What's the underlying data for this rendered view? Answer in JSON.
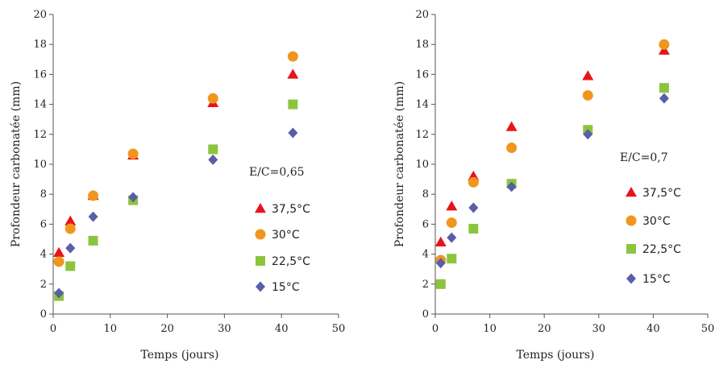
{
  "chart_data": [
    {
      "type": "scatter",
      "title": "",
      "annotation": "E/C=0,65",
      "xlabel": "Temps (jours)",
      "ylabel": "Profondeur carbonatée (mm)",
      "xlim": [
        0,
        50
      ],
      "ylim": [
        0,
        20
      ],
      "xticks": [
        "0",
        "10",
        "20",
        "30",
        "40",
        "50"
      ],
      "yticks": [
        "0",
        "2",
        "4",
        "6",
        "8",
        "10",
        "12",
        "14",
        "16",
        "18",
        "20"
      ],
      "grid": false,
      "legend_position": "right",
      "series": [
        {
          "name": "37,5°C",
          "marker": "triangle",
          "color": "#e8141b",
          "x": [
            1,
            3,
            7,
            14,
            28,
            42
          ],
          "y": [
            4.1,
            6.2,
            7.9,
            10.6,
            14.1,
            16.0
          ]
        },
        {
          "name": "30°C",
          "marker": "circle",
          "color": "#f0961e",
          "x": [
            1,
            3,
            7,
            14,
            28,
            42
          ],
          "y": [
            3.5,
            5.7,
            7.9,
            10.7,
            14.4,
            17.2
          ]
        },
        {
          "name": "22,5°C",
          "marker": "square",
          "color": "#8dc43e",
          "x": [
            1,
            3,
            7,
            14,
            28,
            42
          ],
          "y": [
            1.2,
            3.2,
            4.9,
            7.6,
            11.0,
            14.0
          ]
        },
        {
          "name": "15°C",
          "marker": "diamond",
          "color": "#5a5ea6",
          "x": [
            1,
            3,
            7,
            14,
            28,
            42
          ],
          "y": [
            1.4,
            4.4,
            6.5,
            7.8,
            10.3,
            12.1
          ]
        }
      ]
    },
    {
      "type": "scatter",
      "title": "",
      "annotation": "E/C=0,7",
      "xlabel": "Temps (jours)",
      "ylabel": "Profondeur carbonatée (mm)",
      "xlim": [
        0,
        50
      ],
      "ylim": [
        0,
        20
      ],
      "xticks": [
        "0",
        "10",
        "20",
        "30",
        "40",
        "50"
      ],
      "yticks": [
        "0",
        "2",
        "4",
        "6",
        "8",
        "10",
        "12",
        "14",
        "16",
        "18",
        "20"
      ],
      "grid": false,
      "legend_position": "right",
      "series": [
        {
          "name": "37,5°C",
          "marker": "triangle",
          "color": "#e8141b",
          "x": [
            1,
            3,
            7,
            14,
            28,
            42
          ],
          "y": [
            4.8,
            7.2,
            9.2,
            12.5,
            15.9,
            17.6
          ]
        },
        {
          "name": "30°C",
          "marker": "circle",
          "color": "#f0961e",
          "x": [
            1,
            3,
            7,
            14,
            28,
            42
          ],
          "y": [
            3.6,
            6.1,
            8.8,
            11.1,
            14.6,
            18.0
          ]
        },
        {
          "name": "22,5°C",
          "marker": "square",
          "color": "#8dc43e",
          "x": [
            1,
            3,
            7,
            14,
            28,
            42
          ],
          "y": [
            2.0,
            3.7,
            5.7,
            8.7,
            12.3,
            15.1
          ]
        },
        {
          "name": "15°C",
          "marker": "diamond",
          "color": "#5a5ea6",
          "x": [
            1,
            3,
            7,
            14,
            28,
            42
          ],
          "y": [
            3.4,
            5.1,
            7.1,
            8.5,
            12.0,
            14.4
          ]
        }
      ]
    }
  ]
}
